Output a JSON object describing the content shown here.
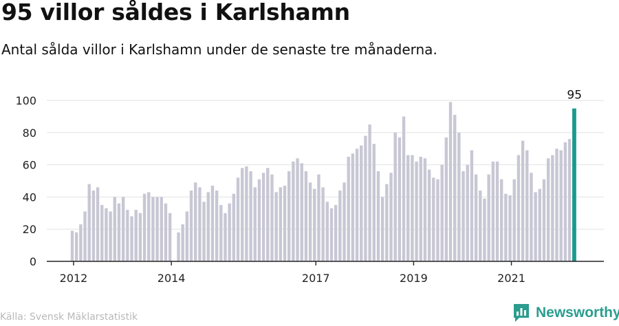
{
  "chart_data": {
    "type": "bar",
    "title": "95 villor såldes i Karlshamn",
    "subtitle": "Antal sålda villor i Karlshamn under de senaste tre månaderna.",
    "xlabel": "",
    "ylabel": "",
    "ylim": [
      0,
      100
    ],
    "yticks": [
      0,
      20,
      40,
      60,
      80,
      100
    ],
    "xticks": [
      {
        "label": "2012",
        "index": 0
      },
      {
        "label": "2014",
        "index": 23
      },
      {
        "label": "2017",
        "index": 57
      },
      {
        "label": "2019",
        "index": 80
      },
      {
        "label": "2021",
        "index": 103
      }
    ],
    "values": [
      19,
      18,
      23,
      31,
      48,
      44,
      46,
      35,
      33,
      31,
      40,
      36,
      40,
      32,
      28,
      32,
      30,
      42,
      43,
      40,
      40,
      40,
      36,
      30,
      null,
      18,
      23,
      31,
      44,
      49,
      46,
      37,
      43,
      47,
      44,
      35,
      30,
      36,
      42,
      52,
      58,
      59,
      56,
      46,
      51,
      55,
      58,
      54,
      43,
      46,
      47,
      56,
      62,
      64,
      61,
      56,
      49,
      45,
      54,
      46,
      37,
      33,
      35,
      44,
      49,
      65,
      67,
      70,
      72,
      78,
      85,
      73,
      56,
      40,
      48,
      55,
      80,
      77,
      90,
      66,
      66,
      62,
      65,
      64,
      57,
      52,
      51,
      60,
      77,
      99,
      91,
      80,
      56,
      60,
      69,
      54,
      44,
      39,
      54,
      62,
      62,
      51,
      42,
      41,
      51,
      66,
      75,
      69,
      55,
      43,
      45,
      51,
      64,
      66,
      70,
      69,
      74,
      76,
      95
    ],
    "highlight": {
      "index": 118,
      "label": "95",
      "color": "#1a9a8f"
    },
    "bar_color": "#c8c7d4",
    "grid": true
  },
  "source": "Källa: Svensk Mäklarstatistik",
  "brand": {
    "name": "Newsworthy",
    "color": "#2a9d8f"
  }
}
